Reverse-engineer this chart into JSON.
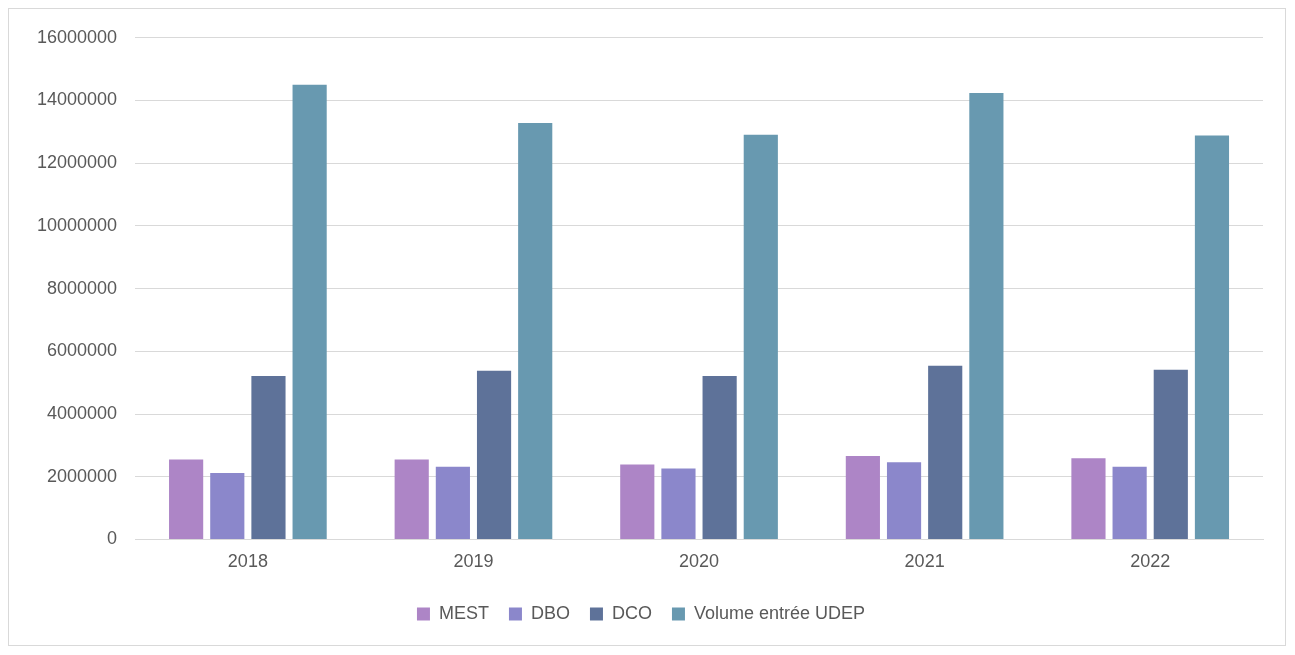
{
  "chart_data": {
    "type": "bar",
    "categories": [
      "2018",
      "2019",
      "2020",
      "2021",
      "2022"
    ],
    "series": [
      {
        "name": "MEST",
        "color": "#ad85c6",
        "values": [
          2550000,
          2550000,
          2390000,
          2660000,
          2590000
        ]
      },
      {
        "name": "DBO",
        "color": "#8b87cb",
        "values": [
          2120000,
          2320000,
          2260000,
          2460000,
          2320000
        ]
      },
      {
        "name": "DCO",
        "color": "#5e7299",
        "values": [
          5210000,
          5380000,
          5210000,
          5540000,
          5410000
        ]
      },
      {
        "name": "Volume entrée UDEP",
        "color": "#6899b0",
        "values": [
          14500000,
          13280000,
          12910000,
          14240000,
          12880000
        ]
      }
    ],
    "ylim": [
      0,
      16000000
    ],
    "yticks": [
      0,
      2000000,
      4000000,
      6000000,
      8000000,
      10000000,
      12000000,
      14000000,
      16000000
    ],
    "grid": "y",
    "legend": "bottom"
  }
}
